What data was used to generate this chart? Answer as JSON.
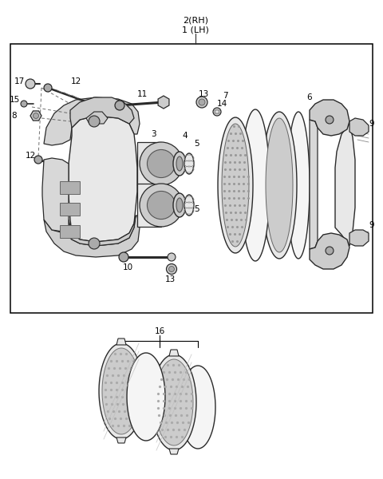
{
  "background_color": "#ffffff",
  "label_color": "#000000",
  "label_fontsize": 7.5,
  "title_fontsize": 8.0,
  "fig_width": 4.8,
  "fig_height": 6.0,
  "dpi": 100,
  "line_color": "#2a2a2a",
  "part_fill_light": "#e8e8e8",
  "part_fill_mid": "#cccccc",
  "part_fill_dark": "#aaaaaa",
  "part_fill_white": "#f5f5f5"
}
